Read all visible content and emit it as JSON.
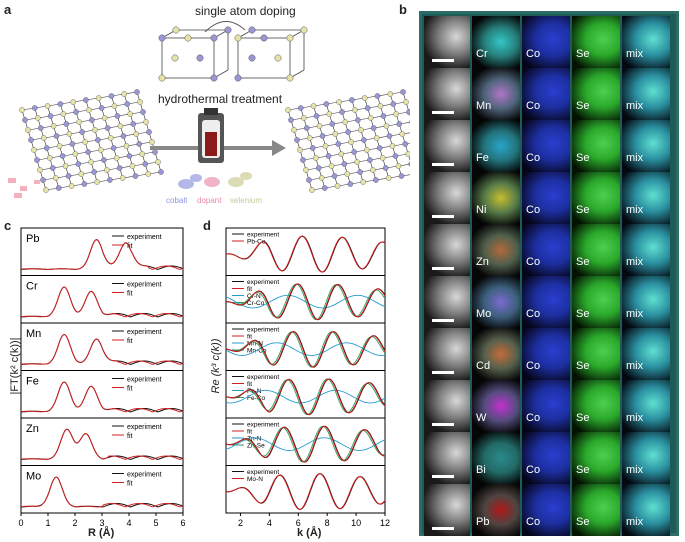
{
  "panel_a": {
    "letter": "a",
    "title_top": "single atom doping",
    "title_mid": "hydrothermal treatment",
    "legend": {
      "cobalt": "cobalt",
      "dopant": "dopant",
      "selenium": "selenium"
    }
  },
  "panel_b": {
    "letter": "b",
    "columns": [
      "",
      "",
      "Co",
      "Se",
      "mix"
    ],
    "rows": [
      "Cr",
      "Mn",
      "Fe",
      "Ni",
      "Zn",
      "Mo",
      "Cd",
      "W",
      "Bi",
      "Pb"
    ],
    "dopant_colors": [
      "#34c6c6",
      "#b076c7",
      "#2aa5c9",
      "#c7bd2e",
      "#b36a3a",
      "#7a6bd0",
      "#c56b3a",
      "#c230d0",
      "#2a8a8a",
      "#b01818"
    ],
    "co_color": "#1d2fa0",
    "se_color": "#2aa82a",
    "mix_color": "#2a8fa0"
  },
  "panel_c": {
    "letter": "c",
    "ylabel": "|FT(k² c(k))|",
    "xlabel": "R (Å)",
    "xticks": [
      "0",
      "1",
      "2",
      "3",
      "4",
      "5",
      "6"
    ],
    "legend_exp": "experiment",
    "legend_fit": "fit",
    "elements": [
      "Pb",
      "Cr",
      "Mn",
      "Fe",
      "Zn",
      "Mo"
    ]
  },
  "panel_d": {
    "letter": "d",
    "ylabel": "Re (k³ c(k))",
    "xlabel": "k (Å)",
    "xticks": [
      "2",
      "4",
      "6",
      "8",
      "10",
      "12"
    ],
    "rows": [
      {
        "legend": [
          "experiment",
          "Pb-Co"
        ]
      },
      {
        "legend": [
          "experiment",
          "fit",
          "Cr-N",
          "Cr-Co"
        ]
      },
      {
        "legend": [
          "experiment",
          "fit",
          "Mn-N",
          "Mn-Co"
        ]
      },
      {
        "legend": [
          "experiment",
          "fit",
          "Fe-N",
          "Fe-Co"
        ]
      },
      {
        "legend": [
          "experiment",
          "fit",
          "Zn-N",
          "Zn-Se"
        ]
      },
      {
        "legend": [
          "experiment",
          "Mo-N"
        ]
      }
    ]
  },
  "chart_data": [
    {
      "type": "line",
      "title": "",
      "xlabel": "R (Å)",
      "ylabel": "|FT(k² c(k))|",
      "xlim": [
        0,
        6
      ],
      "series": [
        {
          "name": "Pb experiment",
          "peaks_R": [
            2.8,
            3.9
          ]
        },
        {
          "name": "Cr experiment",
          "peaks_R": [
            1.6,
            2.6
          ]
        },
        {
          "name": "Mn experiment",
          "peaks_R": [
            1.6,
            2.8
          ]
        },
        {
          "name": "Fe experiment",
          "peaks_R": [
            1.6,
            2.6
          ]
        },
        {
          "name": "Zn experiment",
          "peaks_R": [
            1.7,
            2.4
          ]
        },
        {
          "name": "Mo experiment",
          "peaks_R": [
            1.3
          ]
        }
      ]
    },
    {
      "type": "line",
      "title": "",
      "xlabel": "k (Å)",
      "ylabel": "Re (k³ c(k))",
      "xlim": [
        1,
        12
      ],
      "series": [
        {
          "name": "Pb-Co"
        },
        {
          "name": "Cr-N"
        },
        {
          "name": "Cr-Co"
        },
        {
          "name": "Mn-N"
        },
        {
          "name": "Mn-Co"
        },
        {
          "name": "Fe-N"
        },
        {
          "name": "Fe-Co"
        },
        {
          "name": "Zn-N"
        },
        {
          "name": "Zn-Se"
        },
        {
          "name": "Mo-N"
        }
      ]
    }
  ]
}
